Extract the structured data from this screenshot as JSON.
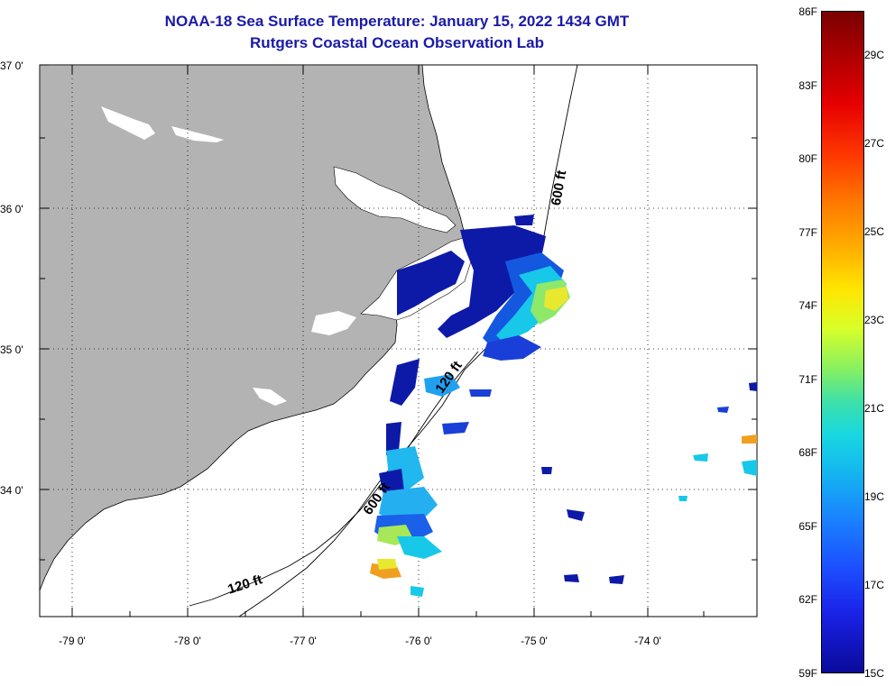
{
  "header": {
    "title": "NOAA-18 Sea Surface Temperature:  January 15, 2022 1434 GMT",
    "subtitle": "Rutgers Coastal Ocean Observation Lab"
  },
  "map": {
    "lat_labels": [
      "37 0'",
      "36 0'",
      "35 0'",
      "34 0'"
    ],
    "lon_labels": [
      "-79 0'",
      "-78 0'",
      "-77 0'",
      "-76 0'",
      "-75 0'",
      "-74 0'"
    ],
    "depth_labels": [
      "600 ft",
      "120 ft",
      "600 ft",
      "120 ft"
    ],
    "colors": {
      "land": "#b3b3b3",
      "ocean": "#ffffff",
      "grid": "#000000"
    }
  },
  "colorbar": {
    "fahrenheit": [
      "86F",
      "83F",
      "80F",
      "77F",
      "74F",
      "71F",
      "68F",
      "65F",
      "62F",
      "59F"
    ],
    "celsius": [
      "29C",
      "27C",
      "25C",
      "23C",
      "21C",
      "19C",
      "17C",
      "15C"
    ]
  }
}
